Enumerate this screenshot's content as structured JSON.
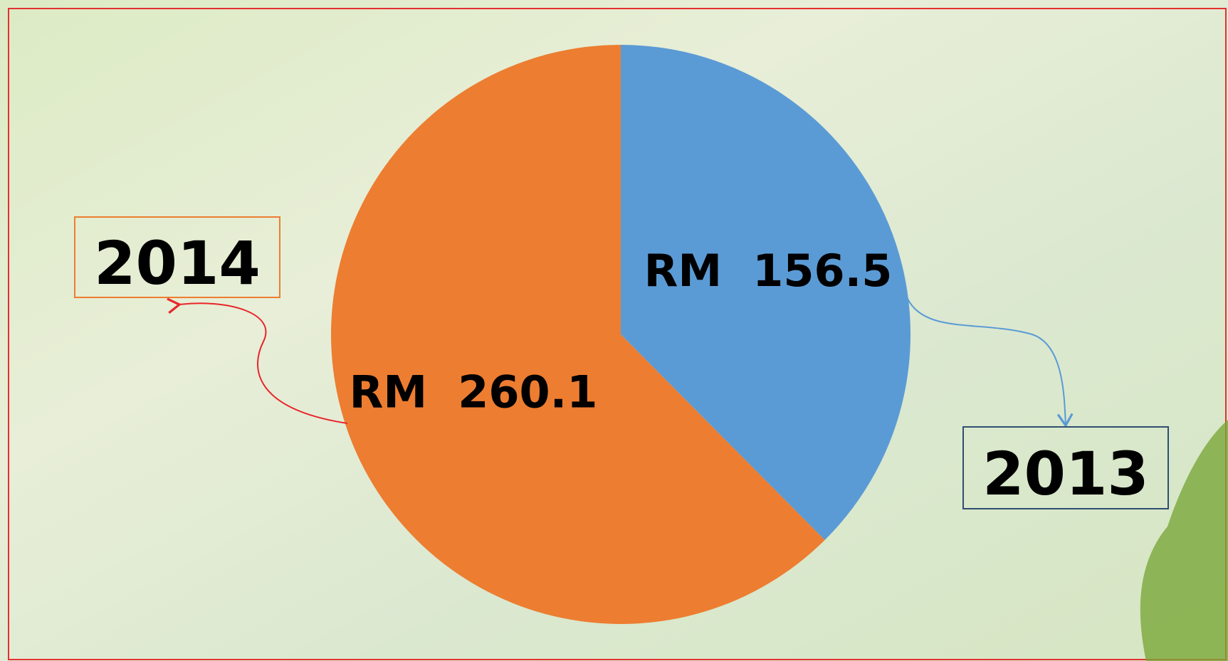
{
  "chart_data": {
    "type": "pie",
    "categories": [
      "2013",
      "2014"
    ],
    "values": [
      156.5,
      260.1
    ],
    "value_labels": [
      "RM  156.5",
      "RM  260.1"
    ],
    "colors": [
      "#5b9bd5",
      "#ed7d31"
    ]
  }
}
